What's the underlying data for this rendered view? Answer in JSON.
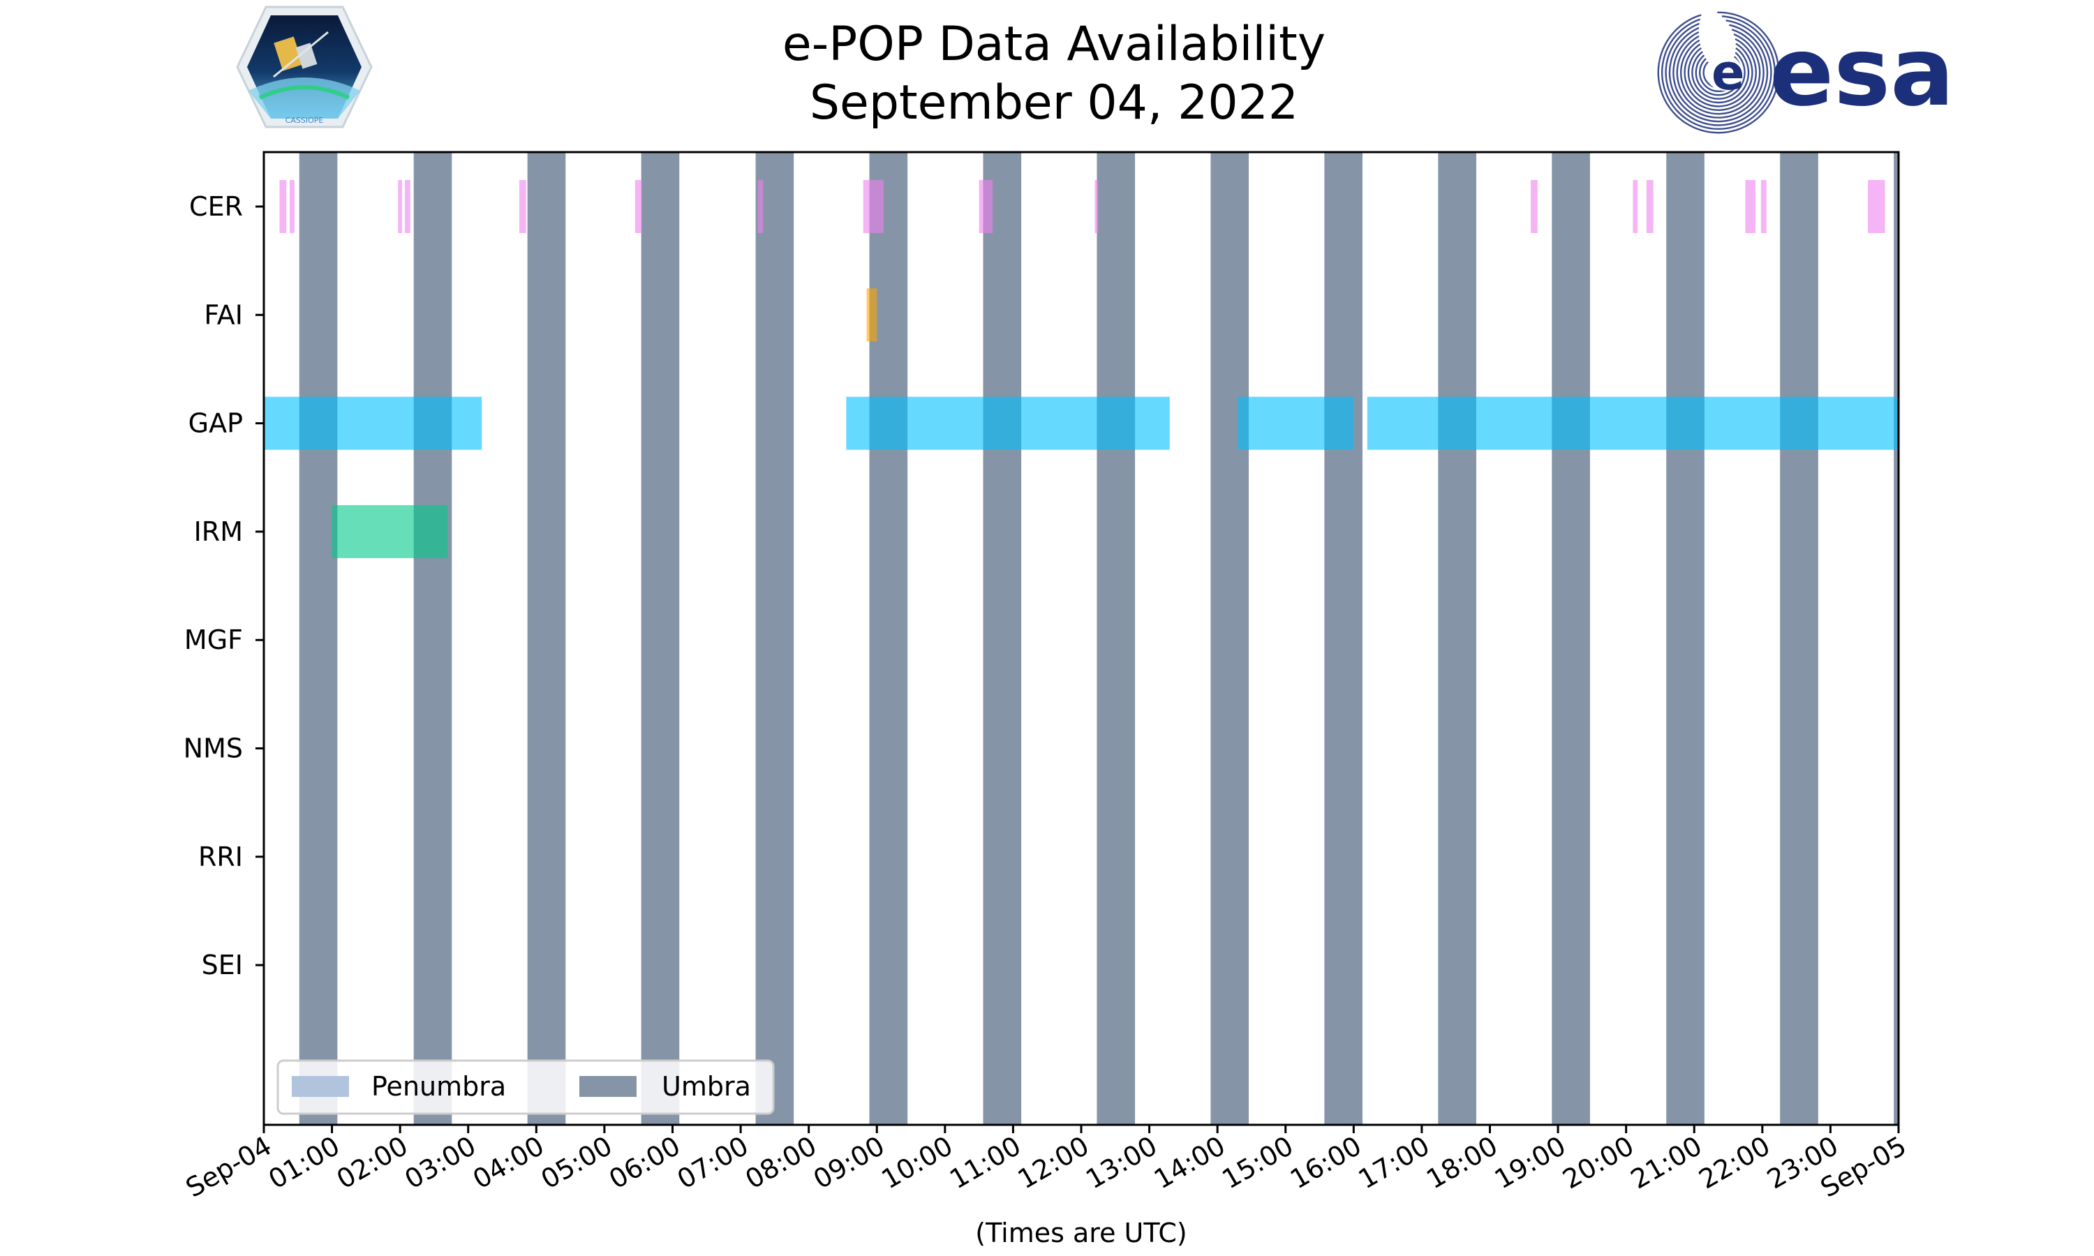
{
  "chart_data": {
    "type": "timeline",
    "title_line1": "e-POP Data Availability",
    "title_line2": "September 04, 2022",
    "xlabel": "(Times are UTC)",
    "x_range_hours": [
      0,
      24
    ],
    "x_ticks": [
      {
        "h": 0,
        "label": "Sep-04"
      },
      {
        "h": 1,
        "label": "01:00"
      },
      {
        "h": 2,
        "label": "02:00"
      },
      {
        "h": 3,
        "label": "03:00"
      },
      {
        "h": 4,
        "label": "04:00"
      },
      {
        "h": 5,
        "label": "05:00"
      },
      {
        "h": 6,
        "label": "06:00"
      },
      {
        "h": 7,
        "label": "07:00"
      },
      {
        "h": 8,
        "label": "08:00"
      },
      {
        "h": 9,
        "label": "09:00"
      },
      {
        "h": 10,
        "label": "10:00"
      },
      {
        "h": 11,
        "label": "11:00"
      },
      {
        "h": 12,
        "label": "12:00"
      },
      {
        "h": 13,
        "label": "13:00"
      },
      {
        "h": 14,
        "label": "14:00"
      },
      {
        "h": 15,
        "label": "15:00"
      },
      {
        "h": 16,
        "label": "16:00"
      },
      {
        "h": 17,
        "label": "17:00"
      },
      {
        "h": 18,
        "label": "18:00"
      },
      {
        "h": 19,
        "label": "19:00"
      },
      {
        "h": 20,
        "label": "20:00"
      },
      {
        "h": 21,
        "label": "21:00"
      },
      {
        "h": 22,
        "label": "22:00"
      },
      {
        "h": 23,
        "label": "23:00"
      },
      {
        "h": 24,
        "label": "Sep-05"
      }
    ],
    "instruments": [
      "CER",
      "FAI",
      "GAP",
      "IRM",
      "MGF",
      "NMS",
      "RRI",
      "SEI"
    ],
    "umbra": [
      [
        0.52,
        1.08
      ],
      [
        2.2,
        2.76
      ],
      [
        3.87,
        4.43
      ],
      [
        5.54,
        6.1
      ],
      [
        7.22,
        7.78
      ],
      [
        8.89,
        9.45
      ],
      [
        10.56,
        11.12
      ],
      [
        12.23,
        12.79
      ],
      [
        13.9,
        14.46
      ],
      [
        15.57,
        16.13
      ],
      [
        17.24,
        17.8
      ],
      [
        18.91,
        19.47
      ],
      [
        20.59,
        21.15
      ],
      [
        22.26,
        22.82
      ],
      [
        23.93,
        24.0
      ]
    ],
    "segments": [
      {
        "instrument": "CER",
        "start": 0.23,
        "end": 0.33
      },
      {
        "instrument": "CER",
        "start": 0.38,
        "end": 0.45
      },
      {
        "instrument": "CER",
        "start": 1.97,
        "end": 2.03
      },
      {
        "instrument": "CER",
        "start": 2.07,
        "end": 2.15
      },
      {
        "instrument": "CER",
        "start": 3.75,
        "end": 3.85
      },
      {
        "instrument": "CER",
        "start": 5.45,
        "end": 5.55
      },
      {
        "instrument": "CER",
        "start": 7.25,
        "end": 7.33
      },
      {
        "instrument": "CER",
        "start": 8.8,
        "end": 9.1
      },
      {
        "instrument": "CER",
        "start": 10.5,
        "end": 10.7
      },
      {
        "instrument": "CER",
        "start": 12.2,
        "end": 12.25
      },
      {
        "instrument": "CER",
        "start": 18.6,
        "end": 18.7
      },
      {
        "instrument": "CER",
        "start": 20.1,
        "end": 20.17
      },
      {
        "instrument": "CER",
        "start": 20.3,
        "end": 20.4
      },
      {
        "instrument": "CER",
        "start": 21.75,
        "end": 21.9
      },
      {
        "instrument": "CER",
        "start": 21.98,
        "end": 22.06
      },
      {
        "instrument": "CER",
        "start": 23.55,
        "end": 23.8
      },
      {
        "instrument": "FAI",
        "start": 8.85,
        "end": 9.0
      },
      {
        "instrument": "GAP",
        "start": 0.0,
        "end": 3.2
      },
      {
        "instrument": "GAP",
        "start": 8.55,
        "end": 13.3
      },
      {
        "instrument": "GAP",
        "start": 14.3,
        "end": 16.0
      },
      {
        "instrument": "GAP",
        "start": 16.2,
        "end": 24.0
      },
      {
        "instrument": "IRM",
        "start": 1.0,
        "end": 2.7
      }
    ],
    "colors": {
      "CER": "#ee82ee",
      "FAI": "#ffa500",
      "GAP": "#00bfff",
      "IRM": "#00c98a",
      "umbra": "#5c7189",
      "penumbra": "#b0c4de"
    },
    "legend": {
      "position": "lower-left",
      "items": [
        {
          "label": "Penumbra",
          "color": "#b0c4de"
        },
        {
          "label": "Umbra",
          "color": "#5c7189"
        }
      ]
    }
  },
  "logos": {
    "esa_text": "esa",
    "cassiope_text": "CASSIOPE"
  }
}
